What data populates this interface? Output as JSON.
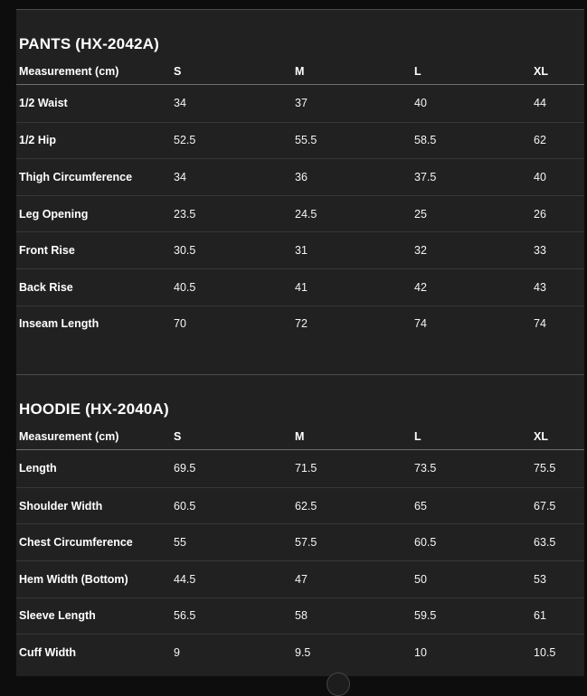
{
  "theme": {
    "page_background": "#0d0d0d",
    "content_background": "#212121",
    "section_divider_color": "#4d4d4d",
    "header_underline_color": "#6e6e6e",
    "row_separator_color": "#373737",
    "text_color": "#ffffff"
  },
  "tables": [
    {
      "title": "PANTS (HX-2042A)",
      "columns": [
        "Measurement (cm)",
        "S",
        "M",
        "L",
        "XL"
      ],
      "rows": [
        [
          "1/2 Waist",
          "34",
          "37",
          "40",
          "44"
        ],
        [
          "1/2 Hip",
          "52.5",
          "55.5",
          "58.5",
          "62"
        ],
        [
          "Thigh Circumference",
          "34",
          "36",
          "37.5",
          "40"
        ],
        [
          "Leg Opening",
          "23.5",
          "24.5",
          "25",
          "26"
        ],
        [
          "Front Rise",
          "30.5",
          "31",
          "32",
          "33"
        ],
        [
          "Back Rise",
          "40.5",
          "41",
          "42",
          "43"
        ],
        [
          "Inseam Length",
          "70",
          "72",
          "74",
          "74"
        ]
      ]
    },
    {
      "title": "HOODIE (HX-2040A)",
      "columns": [
        "Measurement (cm)",
        "S",
        "M",
        "L",
        "XL"
      ],
      "rows": [
        [
          "Length",
          "69.5",
          "71.5",
          "73.5",
          "75.5"
        ],
        [
          "Shoulder Width",
          "60.5",
          "62.5",
          "65",
          "67.5"
        ],
        [
          "Chest Circumference",
          "55",
          "57.5",
          "60.5",
          "63.5"
        ],
        [
          "Hem Width (Bottom)",
          "44.5",
          "47",
          "50",
          "53"
        ],
        [
          "Sleeve Length",
          "56.5",
          "58",
          "59.5",
          "61"
        ],
        [
          "Cuff Width",
          "9",
          "9.5",
          "10",
          "10.5"
        ]
      ]
    }
  ]
}
